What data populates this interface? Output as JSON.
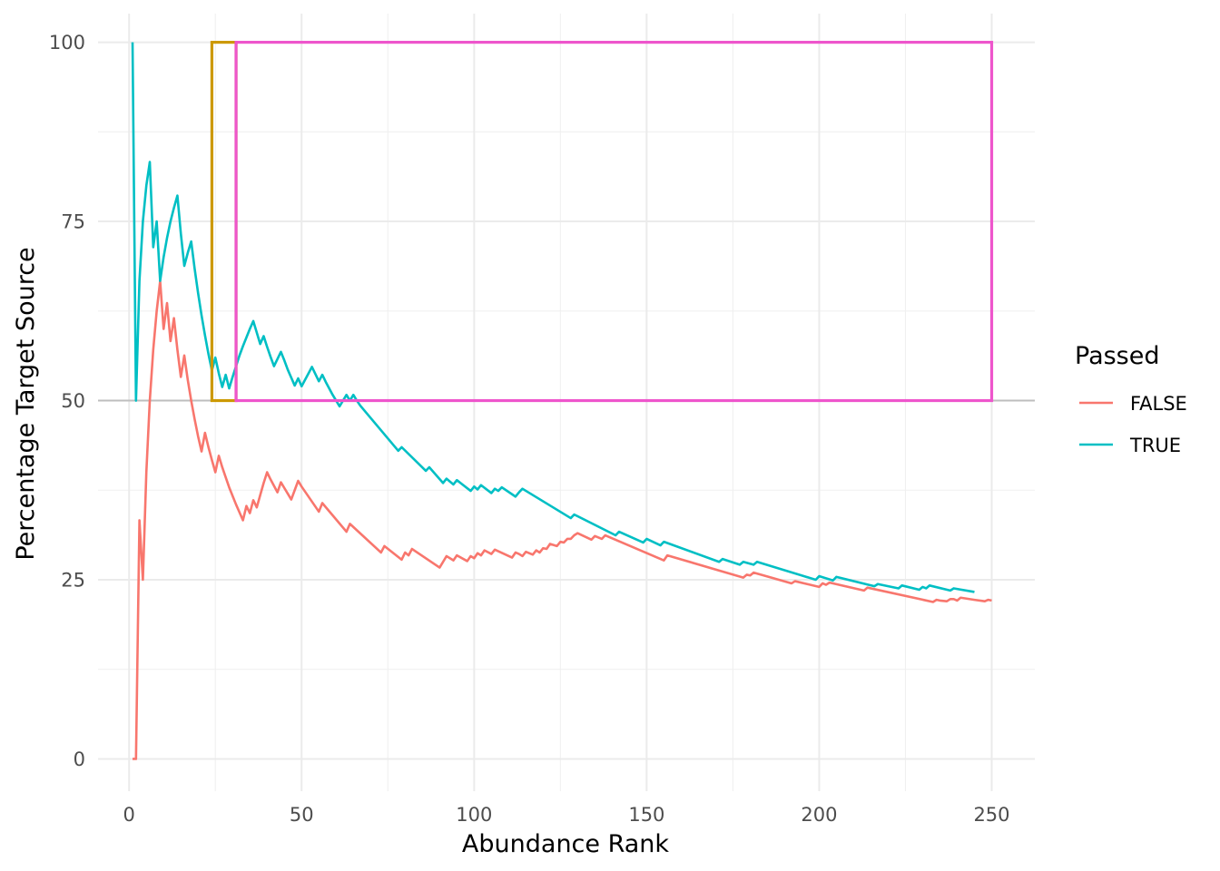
{
  "chart_data": {
    "type": "line",
    "xlabel": "Abundance Rank",
    "ylabel": "Percentage Target Source",
    "xlim": [
      -9,
      262.5
    ],
    "ylim": [
      -4.5,
      104
    ],
    "x_ticks": [
      0,
      50,
      100,
      150,
      200,
      250
    ],
    "y_ticks": [
      0,
      25,
      50,
      75,
      100
    ],
    "grid": true,
    "theme": "minimal",
    "reference_line": {
      "y": 50,
      "color": "#bebebe"
    },
    "legend": {
      "title": "Passed",
      "position": "right"
    },
    "rectangles": [
      {
        "name": "highlight-box-gold",
        "xmin": 24,
        "xmax": 31,
        "ymin": 50,
        "ymax": 100,
        "color": "#CC9900"
      },
      {
        "name": "highlight-box-pink",
        "xmin": 31,
        "xmax": 250,
        "ymin": 50,
        "ymax": 100,
        "color": "#EE55CC"
      }
    ],
    "series": [
      {
        "name": "FALSE",
        "color": "#F8766D",
        "points": [
          [
            1,
            0
          ],
          [
            2,
            0
          ],
          [
            3,
            33.3
          ],
          [
            4,
            25
          ],
          [
            5,
            40
          ],
          [
            6,
            50
          ],
          [
            7,
            57.1
          ],
          [
            8,
            62.5
          ],
          [
            9,
            66.7
          ],
          [
            10,
            60
          ],
          [
            11,
            63.6
          ],
          [
            12,
            58.3
          ],
          [
            13,
            61.5
          ],
          [
            14,
            57.1
          ],
          [
            15,
            53.3
          ],
          [
            16,
            56.3
          ],
          [
            17,
            52.9
          ],
          [
            18,
            50
          ],
          [
            19,
            47.4
          ],
          [
            20,
            45
          ],
          [
            21,
            42.9
          ],
          [
            22,
            45.5
          ],
          [
            23,
            43.5
          ],
          [
            24,
            41.7
          ],
          [
            25,
            40
          ],
          [
            26,
            42.3
          ],
          [
            27,
            40.7
          ],
          [
            28,
            39.3
          ],
          [
            29,
            37.9
          ],
          [
            30,
            36.7
          ],
          [
            31,
            35.5
          ],
          [
            32,
            34.4
          ],
          [
            33,
            33.3
          ],
          [
            34,
            35.3
          ],
          [
            35,
            34.3
          ],
          [
            36,
            36.1
          ],
          [
            37,
            35.1
          ],
          [
            38,
            36.8
          ],
          [
            39,
            38.5
          ],
          [
            40,
            40
          ],
          [
            41,
            39
          ],
          [
            42,
            38.1
          ],
          [
            43,
            37.2
          ],
          [
            44,
            38.6
          ],
          [
            45,
            37.8
          ],
          [
            46,
            37
          ],
          [
            47,
            36.2
          ],
          [
            48,
            37.5
          ],
          [
            49,
            38.8
          ],
          [
            50,
            38
          ],
          [
            55,
            34.5
          ],
          [
            56,
            35.7
          ],
          [
            63,
            31.7
          ],
          [
            64,
            32.8
          ],
          [
            73,
            28.8
          ],
          [
            74,
            29.7
          ],
          [
            79,
            27.8
          ],
          [
            80,
            28.8
          ],
          [
            81,
            28.4
          ],
          [
            82,
            29.3
          ],
          [
            90,
            26.7
          ],
          [
            91,
            27.5
          ],
          [
            92,
            28.3
          ],
          [
            94,
            27.7
          ],
          [
            95,
            28.4
          ],
          [
            98,
            27.6
          ],
          [
            99,
            28.3
          ],
          [
            100,
            28
          ],
          [
            101,
            28.7
          ],
          [
            102,
            28.4
          ],
          [
            103,
            29.1
          ],
          [
            105,
            28.6
          ],
          [
            106,
            29.2
          ],
          [
            111,
            28.1
          ],
          [
            112,
            28.8
          ],
          [
            113,
            28.6
          ],
          [
            114,
            28.3
          ],
          [
            115,
            28.9
          ],
          [
            117,
            28.5
          ],
          [
            118,
            29.1
          ],
          [
            119,
            28.8
          ],
          [
            120,
            29.4
          ],
          [
            121,
            29.3
          ],
          [
            122,
            30
          ],
          [
            124,
            29.7
          ],
          [
            125,
            30.3
          ],
          [
            126,
            30.2
          ],
          [
            127,
            30.7
          ],
          [
            128,
            30.7
          ],
          [
            129,
            31.2
          ],
          [
            130,
            31.5
          ],
          [
            134,
            30.6
          ],
          [
            135,
            31.1
          ],
          [
            137,
            30.7
          ],
          [
            138,
            31.2
          ],
          [
            155,
            27.7
          ],
          [
            156,
            28.4
          ],
          [
            178,
            25.3
          ],
          [
            179,
            25.7
          ],
          [
            180,
            25.6
          ],
          [
            181,
            26
          ],
          [
            192,
            24.5
          ],
          [
            193,
            24.8
          ],
          [
            200,
            24
          ],
          [
            201,
            24.5
          ],
          [
            202,
            24.3
          ],
          [
            203,
            24.6
          ],
          [
            213,
            23.5
          ],
          [
            214,
            23.9
          ],
          [
            233,
            21.9
          ],
          [
            234,
            22.2
          ],
          [
            235,
            22.1
          ],
          [
            237,
            22
          ],
          [
            238,
            22.3
          ],
          [
            239,
            22.3
          ],
          [
            240,
            22.1
          ],
          [
            241,
            22.5
          ],
          [
            245,
            22.2
          ],
          [
            248,
            22
          ],
          [
            249,
            22.2
          ],
          [
            250,
            22.1
          ]
        ]
      },
      {
        "name": "TRUE",
        "color": "#00BFC4",
        "points": [
          [
            1,
            100
          ],
          [
            2,
            50
          ],
          [
            3,
            66.7
          ],
          [
            4,
            75
          ],
          [
            5,
            80
          ],
          [
            6,
            83.3
          ],
          [
            7,
            71.4
          ],
          [
            8,
            75
          ],
          [
            9,
            66.7
          ],
          [
            10,
            70
          ],
          [
            11,
            72.7
          ],
          [
            12,
            75
          ],
          [
            13,
            76.9
          ],
          [
            14,
            78.6
          ],
          [
            15,
            73.3
          ],
          [
            16,
            68.8
          ],
          [
            17,
            70.6
          ],
          [
            18,
            72.2
          ],
          [
            19,
            68.4
          ],
          [
            20,
            65
          ],
          [
            21,
            61.9
          ],
          [
            22,
            59.1
          ],
          [
            23,
            56.5
          ],
          [
            24,
            54.2
          ],
          [
            25,
            56
          ],
          [
            26,
            53.8
          ],
          [
            27,
            51.9
          ],
          [
            28,
            53.6
          ],
          [
            29,
            51.7
          ],
          [
            30,
            53.3
          ],
          [
            31,
            54.8
          ],
          [
            32,
            56.3
          ],
          [
            33,
            57.6
          ],
          [
            34,
            58.8
          ],
          [
            35,
            60
          ],
          [
            36,
            61.1
          ],
          [
            37,
            59.5
          ],
          [
            38,
            57.9
          ],
          [
            39,
            59
          ],
          [
            40,
            57.5
          ],
          [
            41,
            56.1
          ],
          [
            42,
            54.8
          ],
          [
            43,
            55.8
          ],
          [
            44,
            56.8
          ],
          [
            45,
            55.6
          ],
          [
            46,
            54.3
          ],
          [
            47,
            53.2
          ],
          [
            48,
            52.1
          ],
          [
            49,
            53.1
          ],
          [
            50,
            52
          ],
          [
            51,
            52.9
          ],
          [
            52,
            53.8
          ],
          [
            53,
            54.7
          ],
          [
            54,
            53.7
          ],
          [
            55,
            52.7
          ],
          [
            56,
            53.6
          ],
          [
            57,
            52.6
          ],
          [
            58,
            51.7
          ],
          [
            59,
            50.8
          ],
          [
            60,
            50
          ],
          [
            61,
            49.2
          ],
          [
            62,
            50
          ],
          [
            63,
            50.8
          ],
          [
            64,
            50
          ],
          [
            65,
            50.8
          ],
          [
            66,
            50
          ],
          [
            67,
            49.3
          ],
          [
            78,
            43
          ],
          [
            79,
            43.5
          ],
          [
            86,
            40.2
          ],
          [
            87,
            40.7
          ],
          [
            91,
            38.5
          ],
          [
            92,
            39.1
          ],
          [
            94,
            38.3
          ],
          [
            95,
            38.9
          ],
          [
            99,
            37.4
          ],
          [
            100,
            38
          ],
          [
            101,
            37.6
          ],
          [
            102,
            38.2
          ],
          [
            105,
            37.1
          ],
          [
            106,
            37.7
          ],
          [
            107,
            37.4
          ],
          [
            108,
            37.9
          ],
          [
            112,
            36.6
          ],
          [
            113,
            37.2
          ],
          [
            114,
            37.7
          ],
          [
            128,
            33.6
          ],
          [
            129,
            34.1
          ],
          [
            141,
            31.2
          ],
          [
            142,
            31.7
          ],
          [
            149,
            30.2
          ],
          [
            150,
            30.7
          ],
          [
            154,
            29.8
          ],
          [
            155,
            30.3
          ],
          [
            171,
            27.5
          ],
          [
            172,
            27.9
          ],
          [
            177,
            27.1
          ],
          [
            178,
            27.5
          ],
          [
            181,
            27.1
          ],
          [
            182,
            27.5
          ],
          [
            199,
            25
          ],
          [
            200,
            25.5
          ],
          [
            204,
            24.9
          ],
          [
            205,
            25.4
          ],
          [
            216,
            24.1
          ],
          [
            217,
            24.4
          ],
          [
            223,
            23.8
          ],
          [
            224,
            24.2
          ],
          [
            229,
            23.6
          ],
          [
            230,
            24
          ],
          [
            231,
            23.8
          ],
          [
            232,
            24.2
          ],
          [
            238,
            23.5
          ],
          [
            239,
            23.8
          ],
          [
            245,
            23.3
          ]
        ]
      }
    ]
  }
}
